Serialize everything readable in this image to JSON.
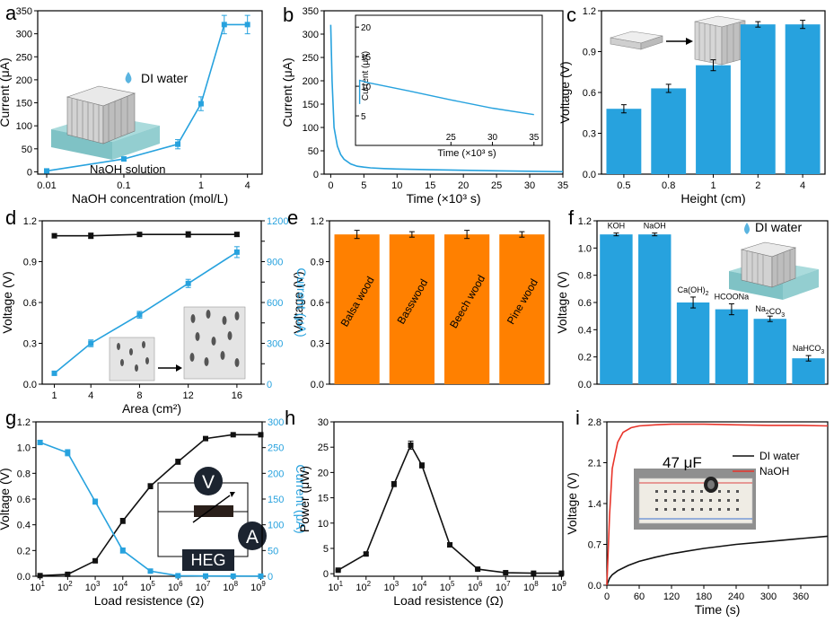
{
  "colors": {
    "blue": "#27A2DE",
    "orange": "#FF8000",
    "black": "#111111",
    "red": "#E8342A"
  },
  "chart_data": [
    {
      "id": "a",
      "panel_label": "a",
      "type": "line",
      "xlabel": "NaOH concentration (mol/L)",
      "ylabel": "Current (μA)",
      "x_scale": "log",
      "xlim": [
        0.01,
        5
      ],
      "ylim": [
        -5,
        350
      ],
      "xticks": [
        0.01,
        0.1,
        1,
        4
      ],
      "xtick_labels": [
        "0.01",
        "0.1",
        "1",
        "4"
      ],
      "yticks": [
        0,
        50,
        100,
        150,
        200,
        250,
        300,
        350
      ],
      "ytick_labels": [
        "0",
        "50",
        "100",
        "150",
        "200",
        "250",
        "300",
        "350"
      ],
      "series": [
        {
          "color": "#27A2DE",
          "x": [
            0.01,
            0.1,
            0.5,
            1,
            2,
            4
          ],
          "y": [
            2,
            28,
            60,
            148,
            320,
            320
          ],
          "err": [
            2,
            4,
            10,
            15,
            20,
            20
          ]
        }
      ],
      "annotations": [
        "DI water",
        "NaOH solution"
      ]
    },
    {
      "id": "b",
      "panel_label": "b",
      "type": "line",
      "xlabel": "Time (×10³ s)",
      "ylabel": "Current (μA)",
      "xlim": [
        -1,
        35
      ],
      "ylim": [
        0,
        350
      ],
      "xticks": [
        0,
        5,
        10,
        15,
        20,
        25,
        30,
        35
      ],
      "xtick_labels": [
        "0",
        "5",
        "10",
        "15",
        "20",
        "25",
        "30",
        "35"
      ],
      "yticks": [
        0,
        50,
        100,
        150,
        200,
        250,
        300,
        350
      ],
      "ytick_labels": [
        "0",
        "50",
        "100",
        "150",
        "200",
        "250",
        "300",
        "350"
      ],
      "series": [
        {
          "color": "#27A2DE",
          "x": [
            0,
            0.2,
            0.5,
            1,
            1.5,
            2,
            3,
            4,
            5,
            6,
            8,
            10,
            15,
            20,
            25,
            30,
            35
          ],
          "y": [
            320,
            200,
            100,
            60,
            42,
            32,
            22,
            17,
            15,
            13.5,
            12,
            11,
            9.5,
            8.3,
            7.2,
            6.2,
            5.2
          ]
        }
      ],
      "inset": {
        "xlabel": "Time (×10³ s)",
        "ylabel": "Current (μA)",
        "xlim": [
          13.5,
          36
        ],
        "ylim": [
          0,
          22
        ],
        "xticks": [
          25,
          30,
          35
        ],
        "xtick_labels": [
          "25",
          "30",
          "35"
        ],
        "yticks": [
          5,
          10,
          15,
          20
        ],
        "ytick_labels": [
          "5",
          "10",
          "15",
          "20"
        ],
        "x": [
          14,
          14,
          15,
          20,
          25,
          30,
          35
        ],
        "y": [
          7,
          11,
          10.6,
          9.2,
          7.7,
          6.3,
          5.2
        ]
      }
    },
    {
      "id": "c",
      "panel_label": "c",
      "type": "bar",
      "xlabel": "Height (cm)",
      "ylabel": "Voltage (V)",
      "ylim": [
        0,
        1.2
      ],
      "yticks": [
        0,
        0.3,
        0.6,
        0.9,
        1.2
      ],
      "ytick_labels": [
        "0.0",
        "0.3",
        "0.6",
        "0.9",
        "1.2"
      ],
      "categories": [
        "0.5",
        "0.8",
        "1",
        "2",
        "4"
      ],
      "values": [
        0.48,
        0.63,
        0.8,
        1.1,
        1.1
      ],
      "err": [
        0.03,
        0.03,
        0.04,
        0.02,
        0.03
      ],
      "bar_color": "#27A2DE"
    },
    {
      "id": "d",
      "panel_label": "d",
      "type": "line",
      "xlabel": "Area (cm²)",
      "ylabel": "Voltage (V)",
      "ylabel_right": "Current (μA)",
      "xlim": [
        0,
        18
      ],
      "ylim": [
        0,
        1.2
      ],
      "ylim_right": [
        0,
        1200
      ],
      "xticks": [
        1,
        4,
        8,
        12,
        16
      ],
      "xtick_labels": [
        "1",
        "4",
        "8",
        "12",
        "16"
      ],
      "yticks": [
        0,
        0.3,
        0.6,
        0.9,
        1.2
      ],
      "ytick_labels": [
        "0.0",
        "0.3",
        "0.6",
        "0.9",
        "1.2"
      ],
      "yticks_right": [
        0,
        150,
        300,
        450,
        600,
        750,
        900,
        1050,
        1200
      ],
      "ytick_labels_right": [
        "0",
        "",
        "300",
        "",
        "600",
        "",
        "900",
        "",
        "1200"
      ],
      "series": [
        {
          "axis": "left",
          "color": "#111111",
          "x": [
            1,
            4,
            8,
            12,
            16
          ],
          "y": [
            1.09,
            1.09,
            1.1,
            1.1,
            1.1
          ],
          "err": [
            0.015,
            0.02,
            0.01,
            0.02,
            0.015
          ]
        },
        {
          "axis": "right",
          "color": "#27A2DE",
          "x": [
            1,
            4,
            8,
            12,
            16
          ],
          "y": [
            80,
            300,
            510,
            740,
            970
          ],
          "err": [
            15,
            25,
            25,
            30,
            40
          ]
        }
      ]
    },
    {
      "id": "e",
      "panel_label": "e",
      "type": "bar",
      "xlabel": "",
      "ylabel": "Voltage (V)",
      "ylim": [
        0,
        1.2
      ],
      "yticks": [
        0,
        0.3,
        0.6,
        0.9,
        1.2
      ],
      "ytick_labels": [
        "0.0",
        "0.3",
        "0.6",
        "0.9",
        "1.2"
      ],
      "categories": [
        "Balsa wood",
        "Basswood",
        "Beech wood",
        "Pine wood"
      ],
      "values": [
        1.1,
        1.1,
        1.1,
        1.1
      ],
      "err": [
        0.03,
        0.02,
        0.03,
        0.02
      ],
      "bar_color": "#FF8000",
      "category_labels_inside": true
    },
    {
      "id": "f",
      "panel_label": "f",
      "type": "bar",
      "xlabel": "",
      "ylabel": "Voltage (V)",
      "ylim": [
        0,
        1.2
      ],
      "yticks": [
        0,
        0.2,
        0.4,
        0.6,
        0.8,
        1.0,
        1.2
      ],
      "ytick_labels": [
        "0.0",
        "0.2",
        "0.4",
        "0.6",
        "0.8",
        "1.0",
        "1.2"
      ],
      "categories": [
        "KOH",
        "NaOH",
        "Ca(OH)",
        "HCOONa",
        "Na CO",
        "NaHCO"
      ],
      "category_subscripts": [
        "",
        "",
        "2",
        "",
        "2|3",
        "3"
      ],
      "values": [
        1.1,
        1.1,
        0.6,
        0.55,
        0.48,
        0.19
      ],
      "err": [
        0.01,
        0.01,
        0.04,
        0.04,
        0.02,
        0.02
      ],
      "bar_color": "#27A2DE",
      "annotations": [
        "DI water"
      ]
    },
    {
      "id": "g",
      "panel_label": "g",
      "type": "line",
      "xlabel": "Load resistence (Ω)",
      "ylabel": "Voltage (V)",
      "ylabel_right": "Current (μA)",
      "x_scale": "log",
      "xlim": [
        0.8,
        1.2
      ],
      "xlim_log": [
        1,
        9
      ],
      "ylim": [
        0,
        1.2
      ],
      "ylim_right": [
        0,
        300
      ],
      "xticks_exp": [
        1,
        2,
        3,
        4,
        5,
        6,
        7,
        8,
        9
      ],
      "yticks": [
        0,
        0.2,
        0.4,
        0.6,
        0.8,
        1.0,
        1.2
      ],
      "ytick_labels": [
        "0.0",
        "0.2",
        "0.4",
        "0.6",
        "0.8",
        "1.0",
        "1.2"
      ],
      "yticks_right": [
        0,
        50,
        100,
        150,
        200,
        250,
        300
      ],
      "ytick_labels_right": [
        "0",
        "50",
        "100",
        "150",
        "200",
        "250",
        "300"
      ],
      "series": [
        {
          "axis": "left",
          "color": "#111111",
          "x_exp": [
            1,
            2,
            3,
            4,
            5,
            6,
            7,
            8,
            9
          ],
          "y": [
            0.005,
            0.015,
            0.12,
            0.43,
            0.7,
            0.89,
            1.07,
            1.1,
            1.1
          ],
          "err": [
            0.005,
            0.008,
            0.01,
            0.02,
            0.02,
            0.02,
            0.005,
            0.005,
            0.005
          ]
        },
        {
          "axis": "right",
          "color": "#27A2DE",
          "x_exp": [
            1,
            2,
            3,
            4,
            5,
            6,
            7,
            8,
            9
          ],
          "y": [
            260,
            240,
            145,
            50,
            10,
            1,
            0.5,
            0.3,
            0.2
          ],
          "err": [
            4,
            6,
            5,
            5,
            2,
            1,
            0.5,
            0.3,
            0.2
          ]
        }
      ],
      "annotations": [
        "V",
        "A",
        "HEG"
      ]
    },
    {
      "id": "h",
      "panel_label": "h",
      "type": "line",
      "xlabel": "Load resistence (Ω)",
      "ylabel": "Power (μW)",
      "x_scale": "log",
      "xlim_log": [
        1,
        9
      ],
      "ylim": [
        -0.5,
        30
      ],
      "xticks_exp": [
        1,
        2,
        3,
        4,
        5,
        6,
        7,
        8,
        9
      ],
      "yticks": [
        0,
        5,
        10,
        15,
        20,
        25,
        30
      ],
      "ytick_labels": [
        "0",
        "5",
        "10",
        "15",
        "20",
        "25",
        "30"
      ],
      "series": [
        {
          "color": "#111111",
          "x_exp": [
            1,
            2,
            3,
            3.6,
            4,
            5,
            6,
            7,
            8,
            9
          ],
          "y": [
            0.7,
            3.9,
            17.7,
            25.4,
            21.4,
            5.7,
            0.9,
            0.2,
            0.1,
            0.1
          ],
          "err": [
            0.1,
            0.3,
            0.5,
            0.8,
            0.5,
            0.4,
            0.1,
            0.05,
            0.05,
            0.05
          ]
        }
      ]
    },
    {
      "id": "i",
      "panel_label": "i",
      "type": "line",
      "xlabel": "Time (s)",
      "ylabel": "Voltage (V)",
      "xlim": [
        0,
        410
      ],
      "ylim": [
        0,
        2.8
      ],
      "xticks": [
        0,
        60,
        120,
        180,
        240,
        300,
        360
      ],
      "xtick_labels": [
        "0",
        "60",
        "120",
        "180",
        "240",
        "300",
        "360"
      ],
      "yticks": [
        0,
        0.7,
        1.4,
        2.1,
        2.8
      ],
      "ytick_labels": [
        "0.0",
        "0.7",
        "1.4",
        "2.1",
        "2.8"
      ],
      "series": [
        {
          "name": "DI water",
          "color": "#111111",
          "x": [
            0,
            5,
            10,
            20,
            40,
            60,
            90,
            120,
            180,
            240,
            300,
            360,
            410
          ],
          "y": [
            0,
            0.12,
            0.18,
            0.25,
            0.34,
            0.41,
            0.48,
            0.54,
            0.63,
            0.7,
            0.75,
            0.8,
            0.84
          ]
        },
        {
          "name": "NaOH",
          "color": "#E8342A",
          "x": [
            0,
            5,
            10,
            20,
            30,
            45,
            60,
            90,
            120,
            180,
            240,
            300,
            360,
            410
          ],
          "y": [
            0,
            1.2,
            2.0,
            2.45,
            2.62,
            2.7,
            2.73,
            2.75,
            2.76,
            2.76,
            2.75,
            2.74,
            2.74,
            2.73
          ]
        }
      ],
      "legend": {
        "placement": "top-right",
        "entries": [
          "DI water",
          "NaOH"
        ]
      },
      "annotations": [
        "47 μF"
      ]
    }
  ]
}
